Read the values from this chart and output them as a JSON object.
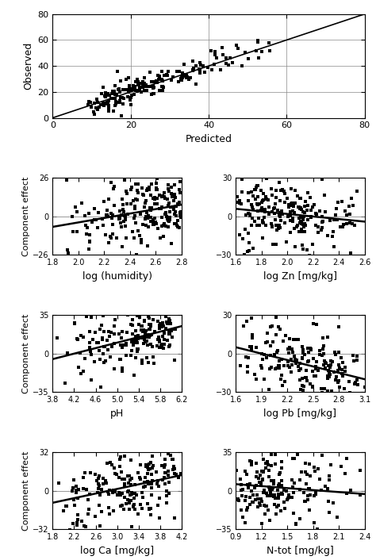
{
  "top_plot": {
    "xlim": [
      0,
      80
    ],
    "ylim": [
      0,
      80
    ],
    "xlabel": "Predicted",
    "ylabel": "Observed",
    "xticks": [
      0,
      20,
      40,
      60,
      80
    ],
    "yticks": [
      0,
      20,
      40,
      60,
      80
    ],
    "diag_line": [
      0,
      80
    ]
  },
  "subplots": [
    {
      "xlabel": "log (humidity)",
      "xlim": [
        1.8,
        2.8
      ],
      "ylim": [
        -26,
        26
      ],
      "xticks": [
        1.8,
        2.0,
        2.2,
        2.4,
        2.6,
        2.8
      ],
      "yticks": [
        -26,
        0,
        26
      ],
      "line_x": [
        1.8,
        2.8
      ],
      "line_y": [
        -7,
        8
      ],
      "ylabel": "Component effect",
      "row": 1,
      "col": 0
    },
    {
      "xlabel": "log Zn [mg/kg]",
      "xlim": [
        1.6,
        2.6
      ],
      "ylim": [
        -30,
        30
      ],
      "xticks": [
        1.6,
        1.8,
        2.0,
        2.2,
        2.4,
        2.6
      ],
      "yticks": [
        -30,
        0,
        30
      ],
      "line_x": [
        1.6,
        2.6
      ],
      "line_y": [
        6,
        -4
      ],
      "ylabel": null,
      "row": 1,
      "col": 1
    },
    {
      "xlabel": "pH",
      "xlim": [
        3.8,
        6.2
      ],
      "ylim": [
        -35,
        35
      ],
      "xticks": [
        3.8,
        4.2,
        4.6,
        5.0,
        5.4,
        5.8,
        6.2
      ],
      "yticks": [
        -35,
        0,
        35
      ],
      "line_x": [
        3.8,
        6.2
      ],
      "line_y": [
        -5,
        25
      ],
      "ylabel": "Component effect",
      "row": 2,
      "col": 0
    },
    {
      "xlabel": "log Pb [mg/kg]",
      "xlim": [
        1.6,
        3.1
      ],
      "ylim": [
        -30,
        30
      ],
      "xticks": [
        1.6,
        1.9,
        2.2,
        2.5,
        2.8,
        3.1
      ],
      "yticks": [
        -30,
        0,
        30
      ],
      "line_x": [
        1.6,
        3.1
      ],
      "line_y": [
        5,
        -20
      ],
      "ylabel": null,
      "row": 2,
      "col": 1
    },
    {
      "xlabel": "log Ca [mg/kg]",
      "xlim": [
        1.8,
        4.2
      ],
      "ylim": [
        -32,
        32
      ],
      "xticks": [
        1.8,
        2.2,
        2.6,
        3.0,
        3.4,
        3.8,
        4.2
      ],
      "yticks": [
        -32,
        0,
        32
      ],
      "line_x": [
        1.8,
        4.2
      ],
      "line_y": [
        -10,
        13
      ],
      "ylabel": "Component effect",
      "row": 3,
      "col": 0
    },
    {
      "xlabel": "N-tot [mg/kg]",
      "xlim": [
        0.9,
        2.4
      ],
      "ylim": [
        -35,
        35
      ],
      "xticks": [
        0.9,
        1.2,
        1.5,
        1.8,
        2.1,
        2.4
      ],
      "yticks": [
        -35,
        0,
        35
      ],
      "line_x": [
        0.9,
        2.4
      ],
      "line_y": [
        6,
        -3
      ],
      "ylabel": null,
      "row": 3,
      "col": 1
    }
  ],
  "dot_color": "#000000",
  "dot_size": 5,
  "line_color": "#000000",
  "line_width": 1.8,
  "font_size": 8,
  "label_font_size": 9,
  "background_color": "#ffffff",
  "grid_color": "#888888"
}
